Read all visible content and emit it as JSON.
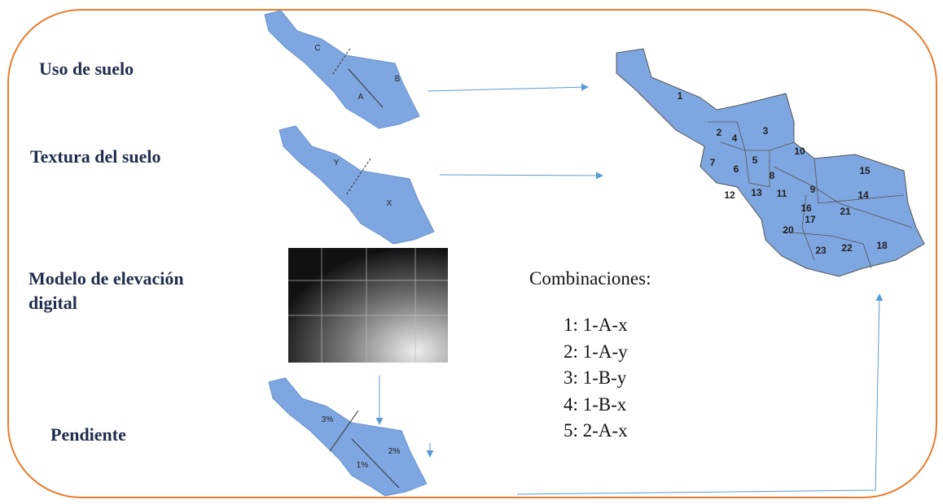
{
  "labels": [
    "Uso de suelo",
    "Textura del suelo",
    "Modelo de elevación digital",
    "Pendiente"
  ],
  "maps": {
    "land_use": [
      "C",
      "B",
      "A"
    ],
    "texture": [
      "Y",
      "X"
    ],
    "slope": [
      "3%",
      "2%",
      "1%"
    ]
  },
  "subbasins": [
    "1",
    "2",
    "3",
    "4",
    "5",
    "6",
    "7",
    "8",
    "9",
    "10",
    "11",
    "12",
    "13",
    "14",
    "15",
    "16",
    "17",
    "18",
    "20",
    "21",
    "22",
    "23"
  ],
  "combinations": {
    "title": "Combinaciones:",
    "items": [
      "1: 1-A-x",
      "2: 1-A-y",
      "3: 1-B-y",
      "4: 1-B-x",
      "5: 2-A-x"
    ]
  }
}
